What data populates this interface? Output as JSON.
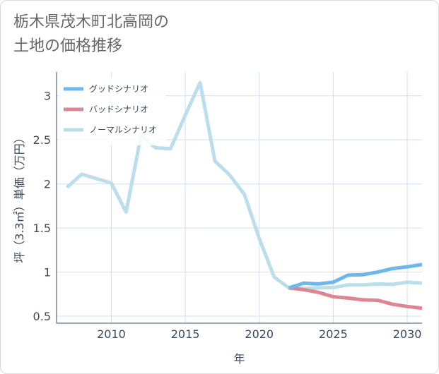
{
  "title": {
    "line1": "栃木県茂木町北高岡の",
    "line2": "土地の価格推移"
  },
  "colors": {
    "good": "#6cb8ec",
    "bad": "#dd8690",
    "normal": "#bcdeea",
    "grid": "#cfe1ee",
    "axis": "#3a4a5c"
  },
  "chart_data": {
    "type": "line",
    "title": "栃木県茂木町北高岡の土地の価格推移",
    "xlabel": "年",
    "ylabel": "坪（3.3㎡）単価（万円）",
    "xlim": [
      2006.3,
      2031
    ],
    "ylim": [
      0.42,
      3.27
    ],
    "x_ticks": [
      2010,
      2015,
      2020,
      2025,
      2030
    ],
    "x_tick_labels": [
      "2010",
      "2015",
      "2020",
      "2025",
      "2030"
    ],
    "y_ticks": [
      0.5,
      1,
      1.5,
      2,
      2.5,
      3
    ],
    "y_tick_labels": [
      "0.5",
      "1",
      "1.5",
      "2",
      "2.5",
      "3"
    ],
    "legend_position": "top-left",
    "series": [
      {
        "name": "グッドシナリオ",
        "key": "good",
        "x": [
          2022,
          2023,
          2024,
          2025,
          2026,
          2027,
          2028,
          2029,
          2030,
          2031
        ],
        "values": [
          0.82,
          0.875,
          0.865,
          0.885,
          0.965,
          0.97,
          1.0,
          1.04,
          1.06,
          1.085
        ]
      },
      {
        "name": "バッドシナリオ",
        "key": "bad",
        "x": [
          2022,
          2023,
          2024,
          2025,
          2026,
          2027,
          2028,
          2029,
          2030,
          2031
        ],
        "values": [
          0.82,
          0.8,
          0.77,
          0.72,
          0.705,
          0.685,
          0.68,
          0.635,
          0.61,
          0.59
        ]
      },
      {
        "name": "ノーマルシナリオ",
        "key": "normal",
        "x": [
          2007,
          2008,
          2009,
          2010,
          2011,
          2012,
          2013,
          2014,
          2015,
          2016,
          2017,
          2018,
          2019,
          2020,
          2021,
          2022,
          2023,
          2024,
          2025,
          2026,
          2027,
          2028,
          2029,
          2030,
          2031
        ],
        "values": [
          1.96,
          2.11,
          2.06,
          2.01,
          1.68,
          2.54,
          2.41,
          2.4,
          2.78,
          3.15,
          2.26,
          2.1,
          1.88,
          1.38,
          0.945,
          0.82,
          0.815,
          0.82,
          0.825,
          0.855,
          0.855,
          0.865,
          0.86,
          0.885,
          0.875
        ]
      }
    ]
  }
}
